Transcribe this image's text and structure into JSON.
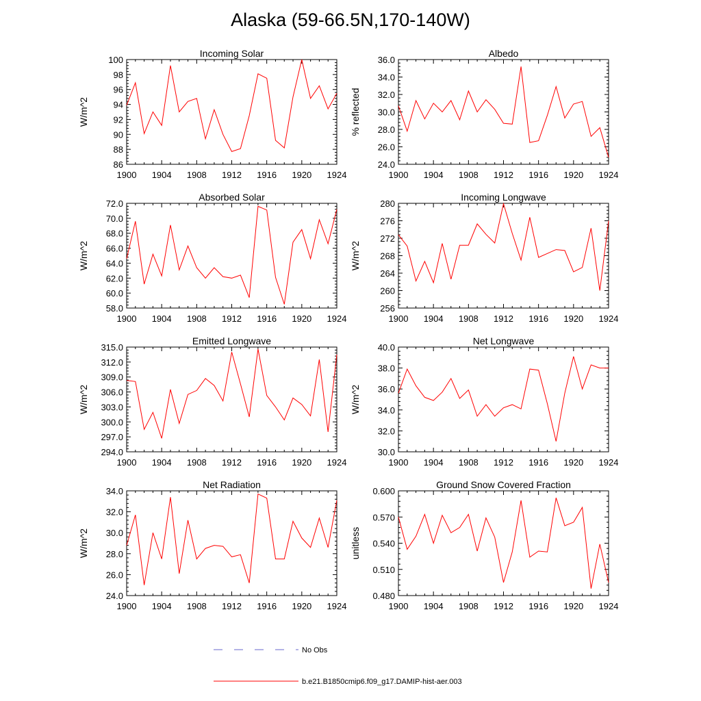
{
  "title": "Alaska (59-66.5N,170-140W)",
  "x_tick_labels": [
    "1900",
    "1904",
    "1908",
    "1912",
    "1916",
    "1920",
    "1924"
  ],
  "colors": {
    "model_line": "#ff0000",
    "obs_line": "#6666cc",
    "axis": "#000000"
  },
  "legend": [
    {
      "label": "No Obs",
      "style": "dashed",
      "color": "#6666cc"
    },
    {
      "label": "b.e21.B1850cmip6.f09_g17.DAMIP-hist-aer.003",
      "style": "solid",
      "color": "#ff0000"
    }
  ],
  "chart_data": [
    {
      "type": "line",
      "title": "Incoming Solar",
      "ylabel": "W/m^2",
      "xlim": [
        1900,
        1924
      ],
      "ylim": [
        86,
        100
      ],
      "yticks": [
        86,
        88,
        90,
        92,
        94,
        96,
        98,
        100
      ],
      "ydec": 0,
      "x": [
        1900,
        1901,
        1902,
        1903,
        1904,
        1905,
        1906,
        1907,
        1908,
        1909,
        1910,
        1911,
        1912,
        1913,
        1914,
        1915,
        1916,
        1917,
        1918,
        1919,
        1920,
        1921,
        1922,
        1923,
        1924
      ],
      "series": [
        {
          "values": [
            93.9,
            96.9,
            90.1,
            93.0,
            91.2,
            99.2,
            93.0,
            94.4,
            94.8,
            89.4,
            93.3,
            90.0,
            87.7,
            88.1,
            92.5,
            98.1,
            97.5,
            89.2,
            88.2,
            95.0,
            100.0,
            94.8,
            96.5,
            93.4,
            95.5
          ]
        }
      ]
    },
    {
      "type": "line",
      "title": "Albedo",
      "ylabel": "% reflected",
      "xlim": [
        1900,
        1924
      ],
      "ylim": [
        24.0,
        36.0
      ],
      "yticks": [
        24,
        26,
        28,
        30,
        32,
        34,
        36
      ],
      "ydec": 1,
      "x": [
        1900,
        1901,
        1902,
        1903,
        1904,
        1905,
        1906,
        1907,
        1908,
        1909,
        1910,
        1911,
        1912,
        1913,
        1914,
        1915,
        1916,
        1917,
        1918,
        1919,
        1920,
        1921,
        1922,
        1923,
        1924
      ],
      "series": [
        {
          "values": [
            30.7,
            27.8,
            31.3,
            29.2,
            31.0,
            30.0,
            31.3,
            29.1,
            32.4,
            30.0,
            31.4,
            30.3,
            28.7,
            28.6,
            35.2,
            26.5,
            26.7,
            29.6,
            32.9,
            29.3,
            30.9,
            31.2,
            27.2,
            28.2,
            24.8
          ]
        }
      ]
    },
    {
      "type": "line",
      "title": "Absorbed Solar",
      "ylabel": "W/m^2",
      "xlim": [
        1900,
        1924
      ],
      "ylim": [
        58.0,
        72.0
      ],
      "yticks": [
        58,
        60,
        62,
        64,
        66,
        68,
        70,
        72
      ],
      "ydec": 1,
      "x": [
        1900,
        1901,
        1902,
        1903,
        1904,
        1905,
        1906,
        1907,
        1908,
        1909,
        1910,
        1911,
        1912,
        1913,
        1914,
        1915,
        1916,
        1917,
        1918,
        1919,
        1920,
        1921,
        1922,
        1923,
        1924
      ],
      "series": [
        {
          "values": [
            64.6,
            69.6,
            61.2,
            65.2,
            62.3,
            69.1,
            63.1,
            66.3,
            63.4,
            62.0,
            63.4,
            62.2,
            62.0,
            62.4,
            59.4,
            71.6,
            71.1,
            62.1,
            58.5,
            66.8,
            68.5,
            64.6,
            69.8,
            66.6,
            71.2
          ]
        }
      ]
    },
    {
      "type": "line",
      "title": "Incoming Longwave",
      "ylabel": "W/m^2",
      "xlim": [
        1900,
        1924
      ],
      "ylim": [
        256,
        280
      ],
      "yticks": [
        256,
        260,
        264,
        268,
        272,
        276,
        280
      ],
      "ydec": 0,
      "x": [
        1900,
        1901,
        1902,
        1903,
        1904,
        1905,
        1906,
        1907,
        1908,
        1909,
        1910,
        1911,
        1912,
        1913,
        1914,
        1915,
        1916,
        1917,
        1918,
        1919,
        1920,
        1921,
        1922,
        1923,
        1924
      ],
      "series": [
        {
          "values": [
            272.8,
            270.2,
            262.2,
            266.7,
            261.8,
            270.8,
            262.6,
            270.4,
            270.4,
            275.3,
            272.9,
            270.9,
            279.9,
            273.1,
            267.0,
            276.8,
            267.6,
            268.5,
            269.4,
            269.2,
            264.3,
            265.3,
            274.3,
            260.0,
            276.0
          ]
        }
      ]
    },
    {
      "type": "line",
      "title": "Emitted Longwave",
      "ylabel": "W/m^2",
      "xlim": [
        1900,
        1924
      ],
      "ylim": [
        294.0,
        315.0
      ],
      "yticks": [
        294,
        297,
        300,
        303,
        306,
        309,
        312,
        315
      ],
      "ydec": 1,
      "x": [
        1900,
        1901,
        1902,
        1903,
        1904,
        1905,
        1906,
        1907,
        1908,
        1909,
        1910,
        1911,
        1912,
        1913,
        1914,
        1915,
        1916,
        1917,
        1918,
        1919,
        1920,
        1921,
        1922,
        1923,
        1924
      ],
      "series": [
        {
          "values": [
            308.3,
            308.1,
            298.5,
            301.9,
            296.7,
            306.5,
            299.7,
            305.5,
            306.3,
            308.7,
            307.3,
            304.2,
            314.0,
            307.6,
            301.0,
            314.6,
            305.3,
            303.0,
            300.4,
            304.8,
            303.5,
            301.2,
            312.5,
            298.0,
            313.5
          ]
        }
      ]
    },
    {
      "type": "line",
      "title": "Net Longwave",
      "ylabel": "W/m^2",
      "xlim": [
        1900,
        1924
      ],
      "ylim": [
        30.0,
        40.0
      ],
      "yticks": [
        30,
        32,
        34,
        36,
        38,
        40
      ],
      "ydec": 1,
      "x": [
        1900,
        1901,
        1902,
        1903,
        1904,
        1905,
        1906,
        1907,
        1908,
        1909,
        1910,
        1911,
        1912,
        1913,
        1914,
        1915,
        1916,
        1917,
        1918,
        1919,
        1920,
        1921,
        1922,
        1923,
        1924
      ],
      "series": [
        {
          "values": [
            35.6,
            37.9,
            36.3,
            35.2,
            34.9,
            35.7,
            37.0,
            35.1,
            35.9,
            33.4,
            34.5,
            33.4,
            34.2,
            34.5,
            34.1,
            37.9,
            37.8,
            34.6,
            31.0,
            35.6,
            39.1,
            36.0,
            38.3,
            38.0,
            38.0
          ]
        }
      ]
    },
    {
      "type": "line",
      "title": "Net Radiation",
      "ylabel": "W/m^2",
      "xlim": [
        1900,
        1924
      ],
      "ylim": [
        24.0,
        34.0
      ],
      "yticks": [
        24,
        26,
        28,
        30,
        32,
        34
      ],
      "ydec": 1,
      "x": [
        1900,
        1901,
        1902,
        1903,
        1904,
        1905,
        1906,
        1907,
        1908,
        1909,
        1910,
        1911,
        1912,
        1913,
        1914,
        1915,
        1916,
        1917,
        1918,
        1919,
        1920,
        1921,
        1922,
        1923,
        1924
      ],
      "series": [
        {
          "values": [
            28.8,
            31.7,
            25.0,
            30.0,
            27.5,
            33.4,
            26.1,
            31.2,
            27.5,
            28.5,
            28.8,
            28.7,
            27.7,
            27.9,
            25.2,
            33.7,
            33.3,
            27.5,
            27.5,
            31.1,
            29.5,
            28.6,
            31.4,
            28.6,
            33.1
          ]
        }
      ]
    },
    {
      "type": "line",
      "title": "Ground Snow Covered Fraction",
      "ylabel": "unitless",
      "xlim": [
        1900,
        1924
      ],
      "ylim": [
        0.48,
        0.6
      ],
      "yticks": [
        0.48,
        0.51,
        0.54,
        0.57,
        0.6
      ],
      "ydec": 3,
      "x": [
        1900,
        1901,
        1902,
        1903,
        1904,
        1905,
        1906,
        1907,
        1908,
        1909,
        1910,
        1911,
        1912,
        1913,
        1914,
        1915,
        1916,
        1917,
        1918,
        1919,
        1920,
        1921,
        1922,
        1923,
        1924
      ],
      "series": [
        {
          "values": [
            0.57,
            0.533,
            0.548,
            0.573,
            0.54,
            0.572,
            0.552,
            0.558,
            0.573,
            0.531,
            0.569,
            0.547,
            0.495,
            0.53,
            0.589,
            0.524,
            0.531,
            0.53,
            0.592,
            0.56,
            0.564,
            0.581,
            0.488,
            0.539,
            0.495
          ]
        }
      ]
    }
  ]
}
